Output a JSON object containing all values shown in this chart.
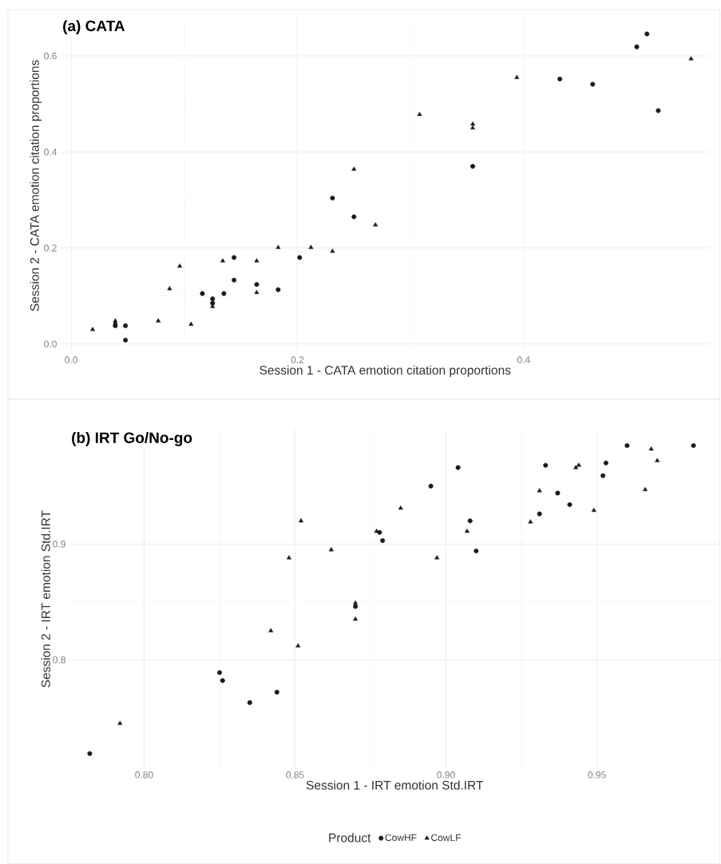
{
  "chart_data": [
    {
      "type": "scatter",
      "title": "(a) CATA",
      "xlabel": "Session 1 - CATA emotion citation proportions",
      "ylabel": "Session 2 - CATA emotion citation proportions",
      "xlim": [
        -0.01,
        0.565
      ],
      "ylim": [
        -0.02,
        0.68
      ],
      "xticks": [
        {
          "value": 0,
          "label": "0.0"
        },
        {
          "value": 0.2,
          "label": "0.2"
        },
        {
          "value": 0.4,
          "label": "0.4"
        }
      ],
      "yticks": [
        {
          "value": 0,
          "label": "0.0"
        },
        {
          "value": 0.2,
          "label": "0.2"
        },
        {
          "value": 0.4,
          "label": "0.4"
        },
        {
          "value": 0.6,
          "label": "0.6"
        }
      ],
      "grid": true,
      "series": [
        {
          "color": "#1a1a1a",
          "marker": "circle",
          "x": [
            0.039,
            0.048,
            0.048,
            0.116,
            0.125,
            0.125,
            0.135,
            0.144,
            0.144,
            0.164,
            0.183,
            0.202,
            0.231,
            0.25,
            0.355,
            0.432,
            0.461,
            0.5,
            0.509,
            0.519
          ],
          "values": [
            0.038,
            0.038,
            0.008,
            0.105,
            0.094,
            0.085,
            0.105,
            0.18,
            0.133,
            0.124,
            0.113,
            0.18,
            0.304,
            0.265,
            0.37,
            0.552,
            0.541,
            0.619,
            0.646,
            0.486
          ]
        },
        {
          "color": "#1a1a1a",
          "marker": "triangle",
          "x": [
            0.019,
            0.039,
            0.039,
            0.077,
            0.087,
            0.096,
            0.106,
            0.125,
            0.134,
            0.164,
            0.164,
            0.183,
            0.212,
            0.231,
            0.25,
            0.269,
            0.308,
            0.355,
            0.355,
            0.394,
            0.548
          ],
          "values": [
            0.03,
            0.048,
            0.044,
            0.048,
            0.115,
            0.162,
            0.041,
            0.078,
            0.173,
            0.173,
            0.107,
            0.201,
            0.201,
            0.193,
            0.364,
            0.248,
            0.478,
            0.458,
            0.45,
            0.555,
            0.594
          ]
        }
      ]
    },
    {
      "type": "scatter",
      "title": "(b) IRT Go/No-go",
      "xlabel": "Session 1 - IRT emotion Std.IRT",
      "ylabel": "Session 2 - IRT emotion Std.IRT",
      "legend_title": "Product",
      "xlim": [
        0.775,
        0.991
      ],
      "ylim": [
        0.706,
        0.999
      ],
      "xticks": [
        {
          "value": 0.8,
          "label": "0.80"
        },
        {
          "value": 0.85,
          "label": "0.85"
        },
        {
          "value": 0.9,
          "label": "0.90"
        },
        {
          "value": 0.95,
          "label": "0.95"
        }
      ],
      "yticks": [
        0.8,
        0.9
      ],
      "grid": true,
      "legend": "bottom",
      "series": [
        {
          "name": "CowHF",
          "color": "#1a1a1a",
          "marker": "circle",
          "x": [
            0.782,
            0.825,
            0.826,
            0.835,
            0.844,
            0.87,
            0.878,
            0.879,
            0.895,
            0.904,
            0.908,
            0.91,
            0.931,
            0.933,
            0.937,
            0.941,
            0.952,
            0.953,
            0.96,
            0.982
          ],
          "values": [
            0.719,
            0.789,
            0.782,
            0.763,
            0.772,
            0.846,
            0.91,
            0.903,
            0.95,
            0.966,
            0.92,
            0.894,
            0.926,
            0.968,
            0.944,
            0.934,
            0.959,
            0.97,
            0.985,
            0.985
          ]
        },
        {
          "name": "CowLF",
          "color": "#1a1a1a",
          "marker": "triangle",
          "x": [
            0.792,
            0.842,
            0.848,
            0.851,
            0.852,
            0.862,
            0.87,
            0.87,
            0.877,
            0.885,
            0.897,
            0.907,
            0.928,
            0.931,
            0.943,
            0.944,
            0.949,
            0.966,
            0.968,
            0.97
          ],
          "values": [
            0.745,
            0.825,
            0.888,
            0.812,
            0.92,
            0.895,
            0.849,
            0.835,
            0.911,
            0.931,
            0.888,
            0.911,
            0.919,
            0.946,
            0.966,
            0.968,
            0.929,
            0.947,
            0.982,
            0.972
          ]
        }
      ]
    }
  ]
}
